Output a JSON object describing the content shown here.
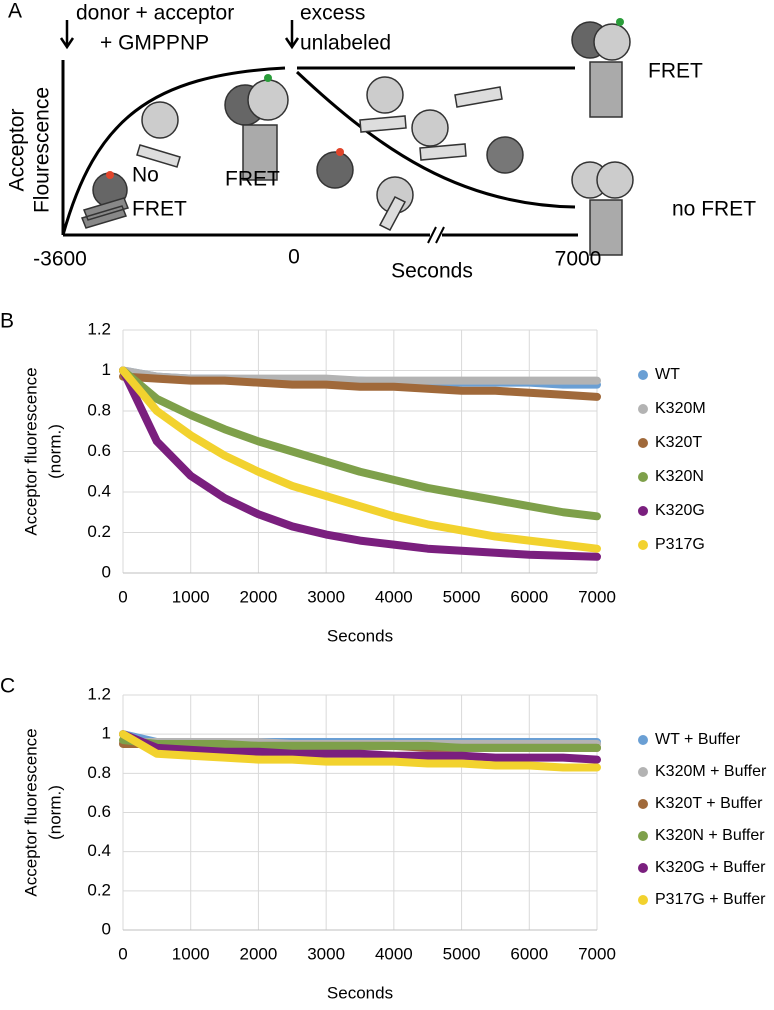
{
  "schematic": {
    "panel": "A",
    "arrow_labels": [
      [
        "donor + acceptor",
        "+ GMPPNP"
      ],
      [
        "excess",
        "unlabeled"
      ]
    ],
    "ylabel": [
      "Acceptor",
      "Flourescence"
    ],
    "state_labels": [
      "No",
      "FRET",
      "FRET",
      "FRET",
      "no FRET"
    ],
    "xticks": [
      -3600,
      0,
      7000
    ],
    "xlabel": "Seconds"
  },
  "chart_data": [
    {
      "type": "line",
      "panel": "B",
      "xlabel": "Seconds",
      "ylabel": [
        "Acceptor fluorescence",
        "(norm.)"
      ],
      "x": [
        0,
        500,
        1000,
        1500,
        2000,
        2500,
        3000,
        3500,
        4000,
        4500,
        5000,
        5500,
        6000,
        6500,
        7000
      ],
      "xlim": [
        0,
        7000
      ],
      "xticks": [
        0,
        1000,
        2000,
        3000,
        4000,
        5000,
        6000,
        7000
      ],
      "ylim": [
        0,
        1.2
      ],
      "yticks": [
        0,
        0.2,
        0.4,
        0.6,
        0.8,
        1,
        1.2
      ],
      "grid": true,
      "legend": "right",
      "series": [
        {
          "name": "WT",
          "color": "#6a9fd4",
          "values": [
            1,
            0.97,
            0.96,
            0.96,
            0.95,
            0.95,
            0.95,
            0.95,
            0.94,
            0.94,
            0.94,
            0.94,
            0.94,
            0.93,
            0.93
          ]
        },
        {
          "name": "K320M",
          "color": "#b3b3b3",
          "values": [
            1,
            0.97,
            0.96,
            0.96,
            0.96,
            0.96,
            0.96,
            0.95,
            0.95,
            0.95,
            0.95,
            0.95,
            0.95,
            0.95,
            0.95
          ]
        },
        {
          "name": "K320T",
          "color": "#a0693a",
          "values": [
            0.97,
            0.96,
            0.95,
            0.95,
            0.94,
            0.93,
            0.93,
            0.92,
            0.92,
            0.91,
            0.9,
            0.9,
            0.89,
            0.88,
            0.87
          ]
        },
        {
          "name": "K320N",
          "color": "#7ea04a",
          "values": [
            1,
            0.86,
            0.78,
            0.71,
            0.65,
            0.6,
            0.55,
            0.5,
            0.46,
            0.42,
            0.39,
            0.36,
            0.33,
            0.3,
            0.28
          ]
        },
        {
          "name": "K320G",
          "color": "#7a1f7e",
          "values": [
            1,
            0.65,
            0.48,
            0.37,
            0.29,
            0.23,
            0.19,
            0.16,
            0.14,
            0.12,
            0.11,
            0.1,
            0.09,
            0.085,
            0.08
          ]
        },
        {
          "name": "P317G",
          "color": "#f2d22e",
          "values": [
            1,
            0.8,
            0.68,
            0.58,
            0.5,
            0.43,
            0.38,
            0.33,
            0.28,
            0.24,
            0.21,
            0.18,
            0.16,
            0.14,
            0.12
          ]
        }
      ]
    },
    {
      "type": "line",
      "panel": "C",
      "xlabel": "Seconds",
      "ylabel": [
        "Acceptor fluorescence",
        "(norm.)"
      ],
      "x": [
        0,
        500,
        1000,
        1500,
        2000,
        2500,
        3000,
        3500,
        4000,
        4500,
        5000,
        5500,
        6000,
        6500,
        7000
      ],
      "xlim": [
        0,
        7000
      ],
      "xticks": [
        0,
        1000,
        2000,
        3000,
        4000,
        5000,
        6000,
        7000
      ],
      "ylim": [
        0,
        1.2
      ],
      "yticks": [
        0,
        0.2,
        0.4,
        0.6,
        0.8,
        1,
        1.2
      ],
      "grid": true,
      "legend": "right",
      "series": [
        {
          "name": "WT + Buffer",
          "color": "#6a9fd4",
          "values": [
            1,
            0.96,
            0.96,
            0.96,
            0.96,
            0.96,
            0.96,
            0.96,
            0.96,
            0.96,
            0.96,
            0.96,
            0.96,
            0.96,
            0.96
          ]
        },
        {
          "name": "K320M + Buffer",
          "color": "#b3b3b3",
          "values": [
            0.96,
            0.96,
            0.96,
            0.96,
            0.96,
            0.95,
            0.95,
            0.95,
            0.95,
            0.95,
            0.95,
            0.95,
            0.95,
            0.95,
            0.95
          ]
        },
        {
          "name": "K320T + Buffer",
          "color": "#a0693a",
          "values": [
            0.95,
            0.95,
            0.95,
            0.94,
            0.94,
            0.94,
            0.94,
            0.94,
            0.94,
            0.93,
            0.93,
            0.93,
            0.93,
            0.93,
            0.93
          ]
        },
        {
          "name": "K320N + Buffer",
          "color": "#7ea04a",
          "values": [
            0.97,
            0.95,
            0.95,
            0.95,
            0.94,
            0.94,
            0.94,
            0.94,
            0.94,
            0.94,
            0.93,
            0.93,
            0.93,
            0.93,
            0.93
          ]
        },
        {
          "name": "K320G + Buffer",
          "color": "#7a1f7e",
          "values": [
            1,
            0.93,
            0.92,
            0.91,
            0.91,
            0.9,
            0.9,
            0.9,
            0.89,
            0.89,
            0.89,
            0.88,
            0.88,
            0.88,
            0.87
          ]
        },
        {
          "name": "P317G + Buffer",
          "color": "#f2d22e",
          "values": [
            1,
            0.9,
            0.89,
            0.88,
            0.87,
            0.87,
            0.86,
            0.86,
            0.86,
            0.85,
            0.85,
            0.84,
            0.84,
            0.83,
            0.83
          ]
        }
      ]
    }
  ]
}
